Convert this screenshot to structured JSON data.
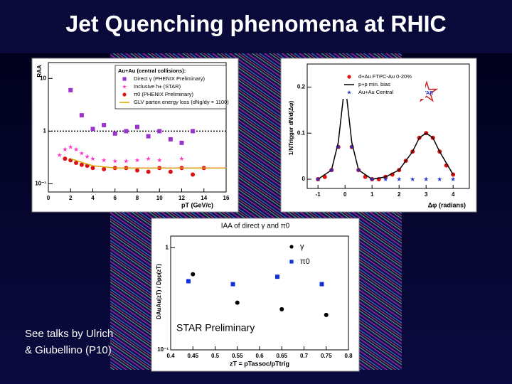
{
  "title": "Jet Quenching phenomena at RHIC",
  "note": [
    "See talks by Ulrich",
    "& Giubellino (P10)"
  ],
  "chart_data": [
    {
      "type": "scatter",
      "ylabel": "RAA",
      "xlabel": "pT (GeV/c)",
      "log_y": true,
      "xlim": [
        0,
        16
      ],
      "ylim": [
        0.07,
        20
      ],
      "xticks": [
        0,
        2,
        4,
        6,
        8,
        10,
        12,
        14,
        16
      ],
      "yticks": [
        {
          "value": 0.1,
          "label": "10⁻¹"
        },
        1,
        10
      ],
      "ref_line": 1,
      "legend_title": "Au+Au (central collisions):",
      "series": [
        {
          "name": "Direct γ (PHENIX Preliminary)",
          "color": "#9933cc",
          "marker": "square",
          "x": [
            2,
            3,
            4,
            5,
            6,
            7,
            8,
            9,
            10,
            11,
            12,
            13
          ],
          "values": [
            6,
            2,
            1.1,
            1.3,
            0.9,
            1.0,
            1.2,
            0.8,
            1.0,
            0.7,
            0.6,
            1.0
          ]
        },
        {
          "name": "Inclusive h± (STAR)",
          "color": "#ff33cc",
          "marker": "star",
          "x": [
            1,
            1.5,
            2,
            2.5,
            3,
            3.5,
            4,
            5,
            6,
            7,
            8,
            9,
            10,
            12
          ],
          "values": [
            0.35,
            0.45,
            0.5,
            0.45,
            0.38,
            0.33,
            0.3,
            0.28,
            0.27,
            0.27,
            0.28,
            0.3,
            0.28,
            0.3
          ]
        },
        {
          "name": "π0 (PHENIX Preliminary)",
          "color": "#dd1111",
          "marker": "circle",
          "x": [
            1.5,
            2,
            2.5,
            3,
            3.5,
            4,
            5,
            6,
            7,
            8,
            9,
            10,
            11,
            12,
            13,
            14
          ],
          "values": [
            0.3,
            0.28,
            0.25,
            0.23,
            0.22,
            0.2,
            0.19,
            0.2,
            0.2,
            0.18,
            0.17,
            0.2,
            0.17,
            0.2,
            0.15,
            0.2
          ]
        },
        {
          "name": "GLV parton energy loss (dNg/dy = 1100)",
          "color": "#e0a000",
          "marker": "line",
          "x": [
            2,
            4,
            6,
            8,
            10,
            12,
            14,
            16
          ],
          "values": [
            0.3,
            0.22,
            0.2,
            0.2,
            0.2,
            0.2,
            0.2,
            0.2
          ]
        }
      ]
    },
    {
      "type": "scatter",
      "ylabel": "1/NTrigger dN/d(Δφ)",
      "xlabel": "Δφ (radians)",
      "log_y": false,
      "xlim": [
        -1.4,
        4.6
      ],
      "ylim": [
        -0.02,
        0.25
      ],
      "xticks": [
        -1,
        0,
        1,
        2,
        3,
        4
      ],
      "yticks": [
        0,
        0.1,
        0.2
      ],
      "logo_text": "STAR",
      "series": [
        {
          "name": "d+Au FTPC-Au 0-20%",
          "color": "#dd1111",
          "marker": "circle",
          "x": [
            -1,
            -0.75,
            -0.5,
            -0.25,
            0,
            0.25,
            0.5,
            0.75,
            1,
            1.25,
            1.5,
            1.75,
            2,
            2.25,
            2.5,
            2.75,
            3,
            3.25,
            3.5,
            3.75,
            4
          ],
          "values": [
            0.0,
            0.005,
            0.02,
            0.07,
            0.2,
            0.07,
            0.02,
            0.005,
            0.0,
            0.0,
            0.005,
            0.01,
            0.02,
            0.04,
            0.06,
            0.09,
            0.1,
            0.09,
            0.06,
            0.03,
            0.01
          ]
        },
        {
          "name": "p+p min. bias",
          "color": "#000000",
          "marker": "line",
          "x": [
            -1,
            -0.5,
            -0.25,
            0,
            0.25,
            0.5,
            1,
            1.5,
            2,
            2.5,
            2.75,
            3,
            3.25,
            3.5,
            4
          ],
          "values": [
            0.0,
            0.02,
            0.08,
            0.21,
            0.08,
            0.02,
            0.0,
            0.005,
            0.02,
            0.06,
            0.09,
            0.1,
            0.09,
            0.06,
            0.01
          ]
        },
        {
          "name": "Au+Au Central",
          "color": "#2233cc",
          "marker": "star",
          "x": [
            -1,
            -0.5,
            -0.25,
            0,
            0.25,
            0.5,
            1,
            1.5,
            2,
            2.5,
            3,
            3.5,
            4
          ],
          "values": [
            0.0,
            0.02,
            0.07,
            0.19,
            0.07,
            0.02,
            0.0,
            0.0,
            0.0,
            0.0,
            0.0,
            0.0,
            0.0
          ]
        }
      ]
    },
    {
      "type": "scatter",
      "title": "IAA of direct γ and π0",
      "ylabel": "DAuAu(zT) / Dpp(zT)",
      "xlabel": "zT = pTassoc/pTtrig",
      "log_y": true,
      "xlim": [
        0.4,
        0.8
      ],
      "ylim": [
        0.1,
        1.3
      ],
      "xticks": [
        0.4,
        0.45,
        0.5,
        0.55,
        0.6,
        0.65,
        0.7,
        0.75,
        0.8
      ],
      "yticks": [
        {
          "value": 0.1,
          "label": "10⁻¹"
        },
        1
      ],
      "annotation": "STAR Preliminary",
      "series": [
        {
          "name": "γ",
          "color": "#000000",
          "marker": "circle",
          "x": [
            0.45,
            0.55,
            0.65,
            0.75
          ],
          "values": [
            0.55,
            0.29,
            0.25,
            0.22
          ]
        },
        {
          "name": "π0",
          "color": "#1133dd",
          "marker": "square",
          "x": [
            0.44,
            0.54,
            0.64,
            0.74
          ],
          "values": [
            0.47,
            0.44,
            0.52,
            0.44
          ]
        }
      ]
    }
  ]
}
